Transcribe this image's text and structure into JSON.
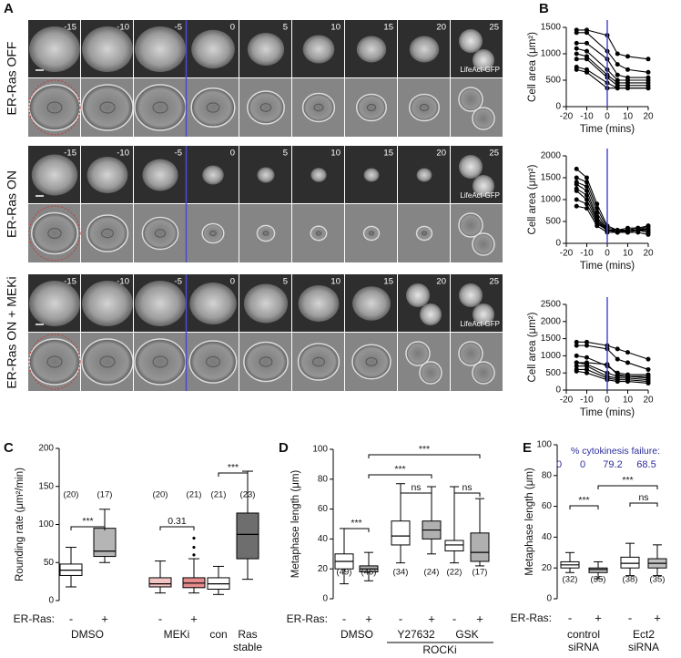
{
  "panel_labels": [
    "A",
    "B",
    "C",
    "D",
    "E"
  ],
  "panel_a": {
    "rows": [
      "ER-Ras OFF",
      "ER-Ras ON",
      "ER-Ras ON + MEKi"
    ],
    "times": [
      -15,
      -10,
      -5,
      0,
      5,
      10,
      15,
      20,
      25
    ],
    "marker": "LifeAct-GFP"
  },
  "chart_data": [
    {
      "type": "line",
      "xlabel": "Time (mins)",
      "ylabel": "Cell area (μm²)",
      "x": [
        -15,
        -10,
        0,
        5,
        10,
        20
      ],
      "xlim": [
        -20,
        20
      ],
      "xticks": [
        -20,
        -10,
        0,
        10,
        20
      ],
      "ylim": [
        0,
        1500
      ],
      "yticks": [
        0,
        500,
        1000,
        1500
      ],
      "color": "#000000",
      "vline": 0,
      "vline_color": "#4a4ad6",
      "series": [
        {
          "values": [
            1450,
            1450,
            1350,
            1000,
            950,
            900
          ]
        },
        {
          "values": [
            1400,
            1400,
            1050,
            800,
            700,
            650
          ]
        },
        {
          "values": [
            1200,
            1200,
            900,
            600,
            550,
            550
          ]
        },
        {
          "values": [
            1100,
            1050,
            700,
            500,
            500,
            500
          ]
        },
        {
          "values": [
            1000,
            950,
            600,
            450,
            450,
            450
          ]
        },
        {
          "values": [
            900,
            900,
            550,
            400,
            400,
            400
          ]
        },
        {
          "values": [
            750,
            700,
            450,
            350,
            350,
            350
          ]
        },
        {
          "values": [
            700,
            650,
            350,
            350,
            350,
            350
          ]
        }
      ]
    },
    {
      "type": "line",
      "xlabel": "Time (mins)",
      "ylabel": "Cell area (μm²)",
      "x": [
        -15,
        -10,
        -5,
        0,
        5,
        10,
        15,
        20
      ],
      "xlim": [
        -20,
        20
      ],
      "xticks": [
        -20,
        -10,
        0,
        10,
        20
      ],
      "ylim": [
        0,
        2000
      ],
      "yticks": [
        0,
        500,
        1000,
        1500,
        2000
      ],
      "color": "#000000",
      "vline": 0,
      "vline_color": "#4a4ad6",
      "series": [
        {
          "values": [
            1700,
            1500,
            900,
            400,
            300,
            300,
            300,
            350
          ]
        },
        {
          "values": [
            1500,
            1400,
            800,
            350,
            300,
            250,
            300,
            400
          ]
        },
        {
          "values": [
            1400,
            1300,
            700,
            300,
            250,
            300,
            300,
            300
          ]
        },
        {
          "values": [
            1350,
            1200,
            600,
            300,
            300,
            300,
            300,
            250
          ]
        },
        {
          "values": [
            1250,
            1100,
            550,
            280,
            300,
            350,
            350,
            400
          ]
        },
        {
          "values": [
            1200,
            1000,
            500,
            280,
            300,
            300,
            350,
            300
          ]
        },
        {
          "values": [
            1000,
            900,
            450,
            300,
            250,
            300,
            300,
            250
          ]
        },
        {
          "values": [
            850,
            800,
            400,
            250,
            250,
            250,
            250,
            200
          ]
        }
      ]
    },
    {
      "type": "line",
      "xlabel": "Time (mins)",
      "ylabel": "Cell area (μm²)",
      "x": [
        -15,
        -10,
        0,
        5,
        10,
        20
      ],
      "xlim": [
        -20,
        20
      ],
      "xticks": [
        -20,
        -10,
        0,
        10,
        20
      ],
      "ylim": [
        0,
        2500
      ],
      "yticks": [
        0,
        500,
        1000,
        1500,
        2000,
        2500
      ],
      "color": "#000000",
      "vline": 0,
      "vline_color": "#4a4ad6",
      "series": [
        {
          "values": [
            1400,
            1400,
            1300,
            1200,
            1100,
            900
          ]
        },
        {
          "values": [
            1300,
            1300,
            1200,
            900,
            800,
            600
          ]
        },
        {
          "values": [
            1000,
            950,
            700,
            500,
            450,
            450
          ]
        },
        {
          "values": [
            800,
            800,
            750,
            450,
            400,
            400
          ]
        },
        {
          "values": [
            800,
            750,
            500,
            400,
            400,
            350
          ]
        },
        {
          "values": [
            700,
            700,
            400,
            350,
            350,
            300
          ]
        },
        {
          "values": [
            600,
            600,
            350,
            300,
            300,
            250
          ]
        },
        {
          "values": [
            550,
            500,
            300,
            250,
            250,
            200
          ]
        }
      ]
    },
    {
      "type": "box",
      "ylabel": "Rounding rate (μm²/min)",
      "ylim": [
        0,
        200
      ],
      "yticks": [
        0,
        50,
        100,
        150,
        200
      ],
      "row_label": "ER-Ras:",
      "signs": [
        "-",
        "+",
        "-",
        "+",
        null,
        null
      ],
      "groups": [
        [
          "DMSO"
        ],
        [
          "MEKi"
        ],
        [
          "con"
        ],
        [
          "Ras",
          "stable"
        ]
      ],
      "boxes": [
        {
          "min": 18,
          "q1": 33,
          "median": 40,
          "q3": 48,
          "max": 70,
          "color": "#ffffff",
          "n": "(20)"
        },
        {
          "min": 50,
          "q1": 58,
          "median": 65,
          "q3": 95,
          "max": 120,
          "color": "#b5b5b5",
          "n": "(17)"
        },
        {
          "min": 10,
          "q1": 18,
          "median": 22,
          "q3": 30,
          "max": 52,
          "color": "#f4c4c4",
          "n": "(20)"
        },
        {
          "min": 10,
          "q1": 17,
          "median": 23,
          "q3": 30,
          "max": 55,
          "color": "#e68c8c",
          "n": "(21)",
          "outliers": [
            60,
            70,
            82
          ]
        },
        {
          "min": 8,
          "q1": 15,
          "median": 22,
          "q3": 30,
          "max": 45,
          "color": "#ffffff",
          "n": "(21)"
        },
        {
          "min": 28,
          "q1": 55,
          "median": 87,
          "q3": 115,
          "max": 170,
          "color": "#6e6e6e",
          "n": "(23)"
        }
      ],
      "significance": [
        "***",
        "0.31",
        "***"
      ]
    },
    {
      "type": "box",
      "ylabel": "Metaphase length (μm)",
      "ylim": [
        0,
        100
      ],
      "yticks": [
        0,
        20,
        40,
        60,
        80,
        100
      ],
      "row_label": "ER-Ras:",
      "signs": [
        "-",
        "+",
        "-",
        "+",
        "-",
        "+"
      ],
      "groups": [
        [
          "DMSO"
        ],
        [
          "Y27632"
        ],
        [
          "GSK"
        ]
      ],
      "group_caption": "ROCKi",
      "boxes": [
        {
          "min": 10,
          "q1": 20,
          "median": 25,
          "q3": 30,
          "max": 47,
          "color": "#ffffff",
          "n": "(49)"
        },
        {
          "min": 12,
          "q1": 18,
          "median": 20,
          "q3": 22,
          "max": 31,
          "color": "#b0b0b0",
          "n": "(46)"
        },
        {
          "min": 24,
          "q1": 36,
          "median": 42,
          "q3": 52,
          "max": 77,
          "color": "#ffffff",
          "n": "(34)"
        },
        {
          "min": 30,
          "q1": 40,
          "median": 46,
          "q3": 52,
          "max": 75,
          "color": "#b0b0b0",
          "n": "(24)"
        },
        {
          "min": 24,
          "q1": 32,
          "median": 36,
          "q3": 39,
          "max": 75,
          "color": "#ffffff",
          "n": "(22)"
        },
        {
          "min": 22,
          "q1": 25,
          "median": 31,
          "q3": 44,
          "max": 67,
          "color": "#b0b0b0",
          "n": "(17)"
        }
      ],
      "significance": [
        "***",
        "***",
        "***",
        "ns",
        "ns"
      ]
    },
    {
      "type": "box",
      "ylabel": "Metaphase length (μm)",
      "ylim": [
        0,
        100
      ],
      "yticks": [
        0,
        20,
        40,
        60,
        80,
        100
      ],
      "row_label": "ER-Ras:",
      "signs": [
        "-",
        "+",
        "-",
        "+"
      ],
      "groups": [
        [
          "control",
          "siRNA"
        ],
        [
          "Ect2",
          "siRNA"
        ]
      ],
      "header": "% cytokinesis failure:",
      "header_values": [
        0,
        0,
        79.2,
        68.5
      ],
      "header_color": "#2d2d9e",
      "boxes": [
        {
          "min": 17,
          "q1": 20,
          "median": 22,
          "q3": 24,
          "max": 30,
          "color": "#ffffff",
          "n": "(32)"
        },
        {
          "min": 13,
          "q1": 17,
          "median": 19,
          "q3": 20,
          "max": 24,
          "color": "#c0c0c0",
          "n": "(35)"
        },
        {
          "min": 15,
          "q1": 20,
          "median": 23,
          "q3": 27,
          "max": 36,
          "color": "#ffffff",
          "n": "(38)"
        },
        {
          "min": 15,
          "q1": 20,
          "median": 23,
          "q3": 26,
          "max": 35,
          "color": "#c0c0c0",
          "n": "(35)"
        }
      ],
      "significance": [
        "***",
        "ns",
        "***"
      ]
    }
  ]
}
